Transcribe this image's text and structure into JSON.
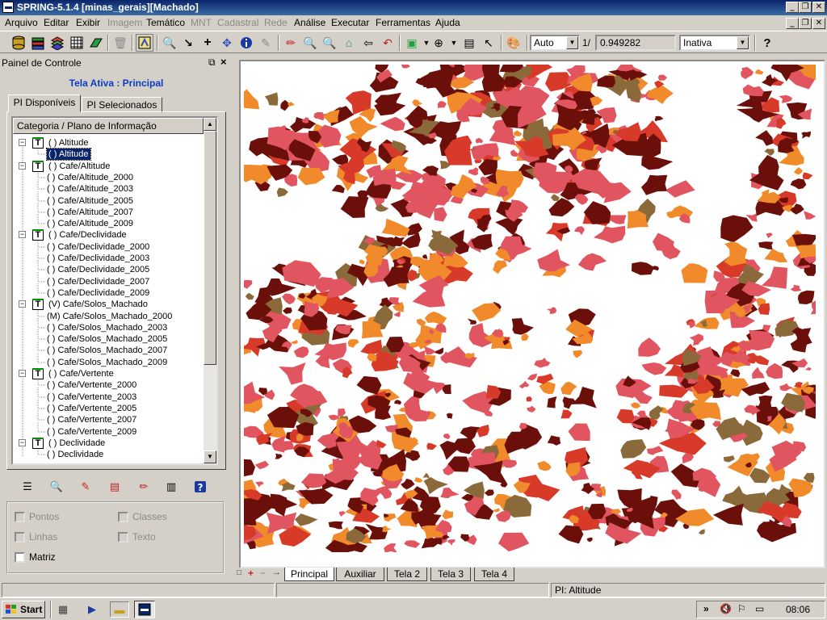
{
  "window": {
    "title": "SPRING-5.1.4 [minas_gerais][Machado]",
    "controls": [
      "_",
      "❐",
      "✕"
    ]
  },
  "menu": {
    "items": [
      {
        "label": "Arquivo",
        "enabled": true
      },
      {
        "label": "Editar",
        "enabled": true
      },
      {
        "label": "Exibir",
        "enabled": true
      },
      {
        "label": "Imagem",
        "enabled": false
      },
      {
        "label": "Temático",
        "enabled": true
      },
      {
        "label": "MNT",
        "enabled": false
      },
      {
        "label": "Cadastral",
        "enabled": false
      },
      {
        "label": "Rede",
        "enabled": false
      },
      {
        "label": "Análise",
        "enabled": true
      },
      {
        "label": "Executar",
        "enabled": true
      },
      {
        "label": "Ferramentas",
        "enabled": true
      },
      {
        "label": "Ajuda",
        "enabled": true
      }
    ]
  },
  "toolbar": {
    "scale_mode": "Auto",
    "scale_prefix": "1/",
    "scale_value": "0.949282",
    "state": "Inativa"
  },
  "panel": {
    "title": "Painel de Controle",
    "active_screen": "Tela Ativa : Principal",
    "tabs": [
      "PI Disponíveis",
      "PI Selecionados"
    ],
    "tree_header": "Categoria / Plano de Informação",
    "tree": [
      {
        "type": "cat",
        "label": "( ) Altitude"
      },
      {
        "type": "pi",
        "label": "( ) Altitude",
        "selected": true
      },
      {
        "type": "cat",
        "label": "( ) Cafe/Altitude"
      },
      {
        "type": "pi",
        "label": "( ) Cafe/Altitude_2000"
      },
      {
        "type": "pi",
        "label": "( ) Cafe/Altitude_2003"
      },
      {
        "type": "pi",
        "label": "( ) Cafe/Altitude_2005"
      },
      {
        "type": "pi",
        "label": "( ) Cafe/Altitude_2007"
      },
      {
        "type": "pi",
        "label": "( ) Cafe/Altitude_2009"
      },
      {
        "type": "cat",
        "label": "( ) Cafe/Declividade"
      },
      {
        "type": "pi",
        "label": "( ) Cafe/Declividade_2000"
      },
      {
        "type": "pi",
        "label": "( ) Cafe/Declividade_2003"
      },
      {
        "type": "pi",
        "label": "( ) Cafe/Declividade_2005"
      },
      {
        "type": "pi",
        "label": "( ) Cafe/Declividade_2007"
      },
      {
        "type": "pi",
        "label": "( ) Cafe/Declividade_2009"
      },
      {
        "type": "cat",
        "label": "(V) Cafe/Solos_Machado"
      },
      {
        "type": "pi",
        "label": "(M) Cafe/Solos_Machado_2000"
      },
      {
        "type": "pi",
        "label": "( ) Cafe/Solos_Machado_2003"
      },
      {
        "type": "pi",
        "label": "( ) Cafe/Solos_Machado_2005"
      },
      {
        "type": "pi",
        "label": "( ) Cafe/Solos_Machado_2007"
      },
      {
        "type": "pi",
        "label": "( ) Cafe/Solos_Machado_2009"
      },
      {
        "type": "cat",
        "label": "( ) Cafe/Vertente"
      },
      {
        "type": "pi",
        "label": "( ) Cafe/Vertente_2000"
      },
      {
        "type": "pi",
        "label": "( ) Cafe/Vertente_2003"
      },
      {
        "type": "pi",
        "label": "( ) Cafe/Vertente_2005"
      },
      {
        "type": "pi",
        "label": "( ) Cafe/Vertente_2007"
      },
      {
        "type": "pi",
        "label": "( ) Cafe/Vertente_2009"
      },
      {
        "type": "cat",
        "label": "( ) Declividade"
      },
      {
        "type": "pi",
        "label": "( ) Declividade"
      }
    ],
    "checkboxes": [
      {
        "label": "Pontos",
        "enabled": false
      },
      {
        "label": "Classes",
        "enabled": false
      },
      {
        "label": "Linhas",
        "enabled": false
      },
      {
        "label": "Texto",
        "enabled": false
      },
      {
        "label": "Matriz",
        "enabled": true
      }
    ]
  },
  "map": {
    "colors": [
      "#6b0f0a",
      "#f08a2a",
      "#e05560",
      "#d83a2a",
      "#8a6a3a"
    ]
  },
  "screen_tabs": {
    "controls": [
      "+",
      "−",
      "→"
    ],
    "tabs": [
      "Principal",
      "Auxiliar",
      "Tela 2",
      "Tela 3",
      "Tela 4"
    ],
    "active": "Principal"
  },
  "status": {
    "pi": "PI: Altitude"
  },
  "taskbar": {
    "start": "Start",
    "clock": "08:06"
  }
}
